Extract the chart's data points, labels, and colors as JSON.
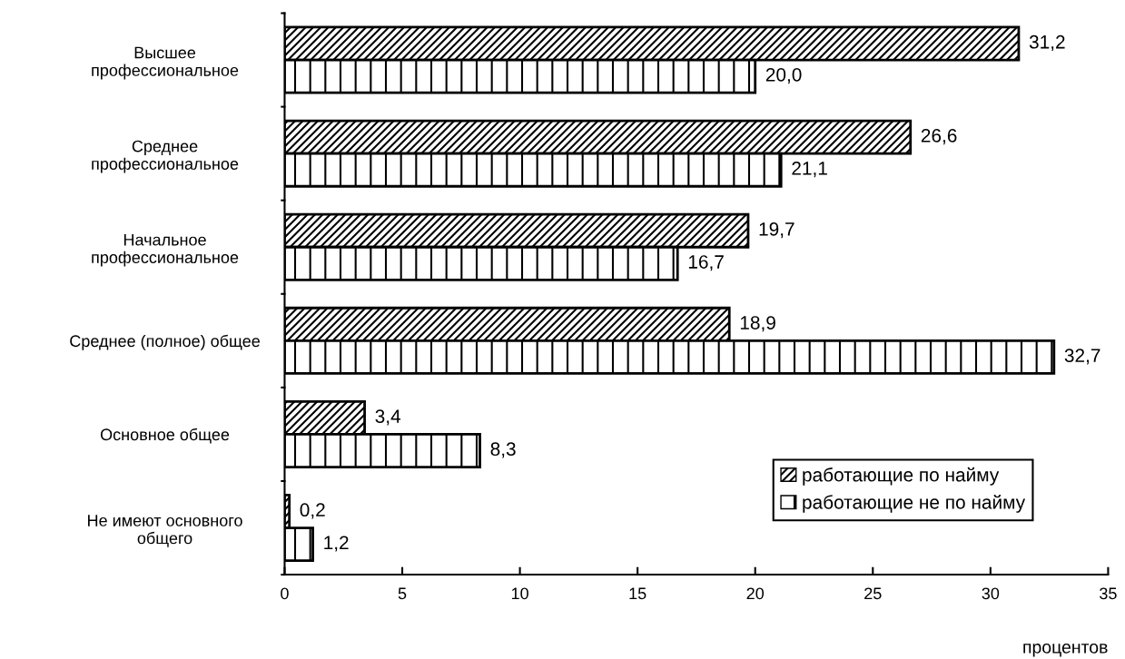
{
  "chart_data": {
    "type": "bar",
    "orientation": "horizontal",
    "xlabel": "процентов",
    "categories": [
      "Высшее\nпрофессиональное",
      "Среднее\nпрофессиональное",
      "Начальное\nпрофессиональное",
      "Среднее (полное) общее",
      "Основное общее",
      "Не имеют основного\nобщего"
    ],
    "series": [
      {
        "name": "работающие по найму",
        "color": "#000000",
        "values": [
          31.2,
          26.6,
          19.7,
          18.9,
          3.4,
          0.2
        ],
        "value_labels": [
          "31,2",
          "26,6",
          "19,7",
          "18,9",
          "3,4",
          "0,2"
        ]
      },
      {
        "name": "работающие не по найму",
        "color": "#000000",
        "values": [
          20.0,
          21.1,
          16.7,
          32.7,
          8.3,
          1.2
        ],
        "value_labels": [
          "20,0",
          "21,1",
          "16,7",
          "32,7",
          "8,3",
          "1,2"
        ]
      }
    ],
    "xlim": [
      0,
      35
    ],
    "xticks": [
      0,
      5,
      10,
      15,
      20,
      25,
      30,
      35
    ],
    "grid": false,
    "legend": "bottom right"
  }
}
